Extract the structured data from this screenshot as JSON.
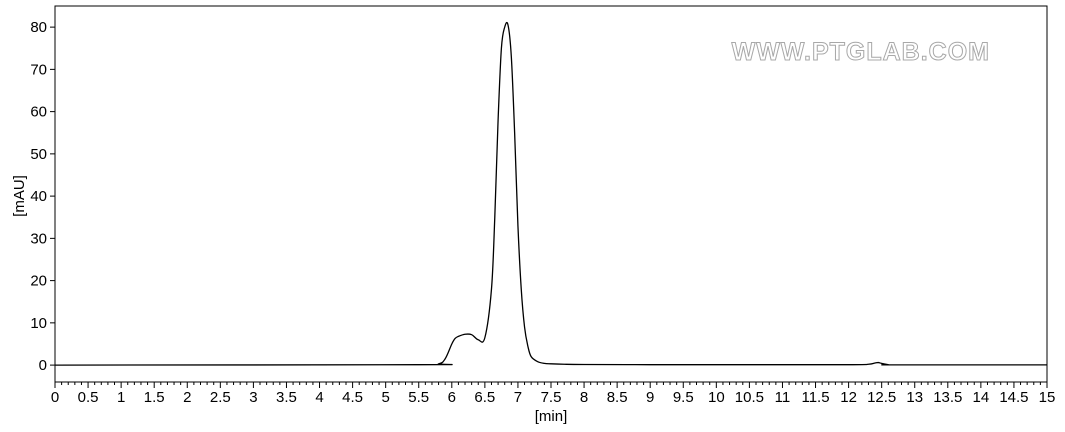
{
  "chart_data": {
    "type": "line",
    "xlabel": "[min]",
    "ylabel": "[mAU]",
    "xlim": [
      0,
      15
    ],
    "ylim": [
      -4,
      85
    ],
    "x_ticks": [
      "0",
      "0.5",
      "1",
      "1.5",
      "2",
      "2.5",
      "3",
      "3.5",
      "4",
      "4.5",
      "5",
      "5.5",
      "6",
      "6.5",
      "7",
      "7.5",
      "8",
      "8.5",
      "9",
      "9.5",
      "10",
      "10.5",
      "11",
      "11.5",
      "12",
      "12.5",
      "13",
      "13.5",
      "14",
      "14.5",
      "15"
    ],
    "y_ticks": [
      "0",
      "10",
      "20",
      "30",
      "40",
      "50",
      "60",
      "70",
      "80"
    ],
    "grid": false,
    "series": [
      {
        "x": [
          0,
          5.5,
          5.8,
          5.9,
          6.0,
          6.05,
          6.1,
          6.2,
          6.3,
          6.4,
          6.5,
          6.6,
          6.65,
          6.7,
          6.75,
          6.8,
          6.85,
          6.9,
          6.95,
          7.0,
          7.05,
          7.1,
          7.15,
          7.2,
          7.3,
          7.4,
          7.5,
          7.7,
          8.0,
          9.0,
          10.0,
          12.0,
          12.3,
          12.4,
          12.45,
          12.5,
          12.6,
          12.7,
          15.0
        ],
        "y": [
          0,
          0.1,
          0.3,
          1.5,
          5.0,
          6.3,
          6.8,
          7.3,
          7.2,
          6.0,
          6.5,
          18.0,
          35.0,
          58.0,
          75.0,
          80.0,
          80.5,
          73.0,
          55.0,
          33.0,
          18.0,
          9.0,
          4.5,
          2.0,
          0.8,
          0.4,
          0.3,
          0.2,
          0.15,
          0.1,
          0.1,
          0.1,
          0.2,
          0.5,
          0.6,
          0.4,
          0.1,
          0.05,
          0.05
        ]
      }
    ],
    "watermark": "WWW.PTGLAB.COM"
  }
}
